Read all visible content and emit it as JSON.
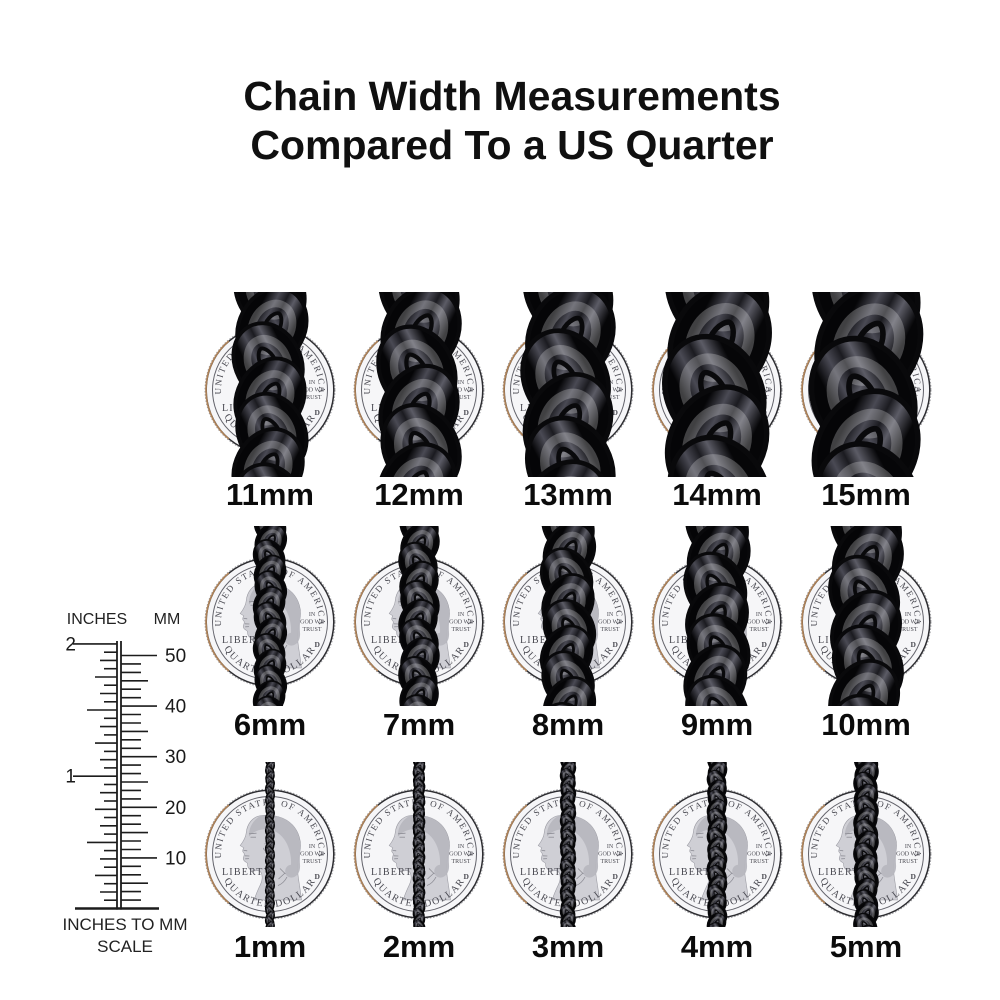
{
  "title": {
    "line1": "Chain Width Measurements",
    "line2": "Compared To a US Quarter"
  },
  "rows": [
    {
      "name": "large-chains",
      "labels": [
        "11mm",
        "12mm",
        "13mm",
        "14mm",
        "15mm"
      ],
      "mm": [
        11,
        12,
        13,
        14,
        15
      ]
    },
    {
      "name": "medium-chains",
      "labels": [
        "6mm",
        "7mm",
        "8mm",
        "9mm",
        "10mm"
      ],
      "mm": [
        6,
        7,
        8,
        9,
        10
      ]
    },
    {
      "name": "small-chains",
      "labels": [
        "1mm",
        "2mm",
        "3mm",
        "4mm",
        "5mm"
      ],
      "mm": [
        1,
        2,
        3,
        4,
        5
      ]
    }
  ],
  "ruler": {
    "left_unit": "INCHES",
    "right_unit": "MM",
    "inch_labels": [
      {
        "text": "2",
        "inches": 2
      },
      {
        "text": "1",
        "inches": 1
      }
    ],
    "mm_labels": [
      {
        "text": "50",
        "mm": 50
      },
      {
        "text": "40",
        "mm": 40
      },
      {
        "text": "30",
        "mm": 30
      },
      {
        "text": "20",
        "mm": 20
      },
      {
        "text": "10",
        "mm": 10
      }
    ],
    "caption_line1": "INCHES TO MM",
    "caption_line2": "SCALE"
  },
  "coin": {
    "top_text": "UNITED STATES OF AMERICA",
    "left_text": "LIBERTY",
    "motto": [
      "IN",
      "GOD WE",
      "TRUST"
    ],
    "mint_mark": "D",
    "bottom_text": "QUARTER DOLLAR"
  },
  "colors": {
    "background": "#ffffff",
    "text": "#101010",
    "chain_dark": "#09090b",
    "chain_mid": "#4a4a54",
    "chain_highlight": "#9a9aa4",
    "coin_face": "#f6f6f8",
    "coin_rim": "#2c2c30",
    "coin_engraving": "#8f8f96",
    "copper_rim": "#b9895c",
    "ruler_line": "#1c1c1c"
  }
}
